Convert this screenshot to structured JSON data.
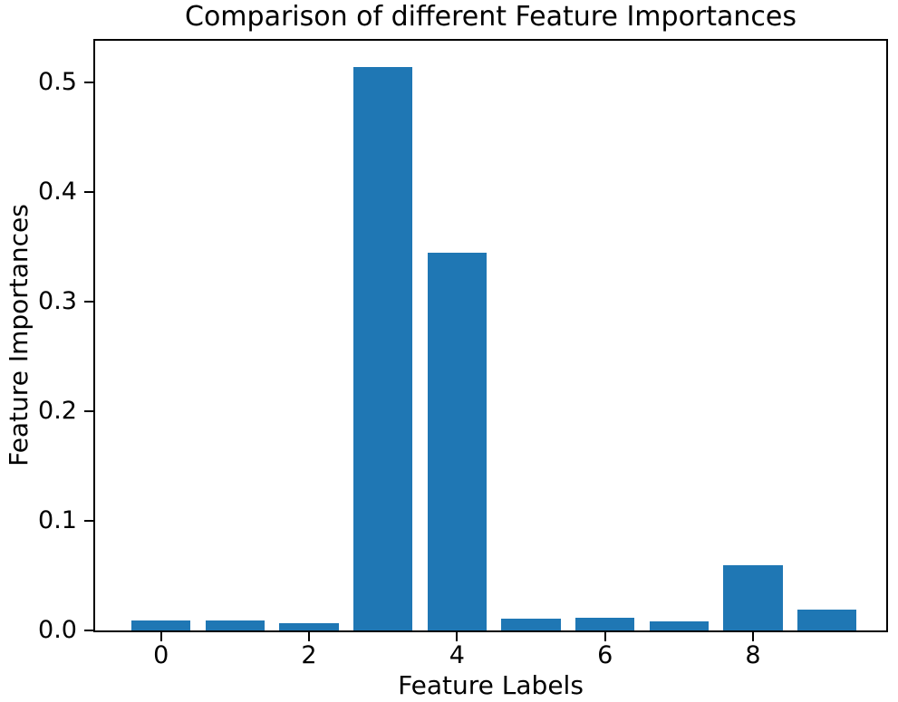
{
  "chart_data": {
    "type": "bar",
    "title": "Comparison of different Feature Importances",
    "xlabel": "Feature Labels",
    "ylabel": "Feature Importances",
    "categories": [
      0,
      1,
      2,
      3,
      4,
      5,
      6,
      7,
      8,
      9
    ],
    "values": [
      0.009,
      0.0095,
      0.007,
      0.514,
      0.3445,
      0.0105,
      0.0115,
      0.008,
      0.0595,
      0.019
    ],
    "xticks": [
      0,
      2,
      4,
      6,
      8
    ],
    "yticks": [
      0.0,
      0.1,
      0.2,
      0.3,
      0.4,
      0.5
    ],
    "xlim": [
      -0.89,
      9.8
    ],
    "ylim": [
      0,
      0.538
    ],
    "bar_width": 0.8,
    "bar_color": "#1f77b4",
    "axis_color": "#000000",
    "text_color": "#000000",
    "background": "#ffffff",
    "grid": false,
    "legend": null
  }
}
